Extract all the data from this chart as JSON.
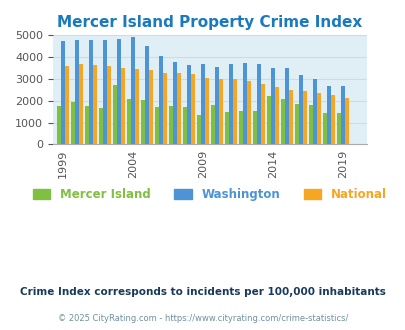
{
  "title": "Mercer Island Property Crime Index",
  "title_color": "#1a7abf",
  "subtitle": "Crime Index corresponds to incidents per 100,000 inhabitants",
  "copyright": "© 2025 CityRating.com - https://www.cityrating.com/crime-statistics/",
  "years": [
    1999,
    2000,
    2001,
    2002,
    2003,
    2004,
    2005,
    2006,
    2007,
    2008,
    2009,
    2010,
    2011,
    2012,
    2013,
    2014,
    2015,
    2016,
    2017,
    2018,
    2019,
    2020
  ],
  "mercer_island": [
    1780,
    1940,
    1760,
    1680,
    2740,
    2060,
    2030,
    1720,
    1760,
    1730,
    1340,
    1820,
    1480,
    1520,
    1550,
    2200,
    2100,
    1850,
    1820,
    1440,
    1440,
    0
  ],
  "washington": [
    4730,
    4800,
    4770,
    4780,
    4830,
    4920,
    4490,
    4040,
    3800,
    3660,
    3700,
    3560,
    3680,
    3720,
    3700,
    3480,
    3500,
    3170,
    3010,
    2660,
    2660,
    0
  ],
  "national": [
    3600,
    3670,
    3630,
    3580,
    3500,
    3470,
    3390,
    3280,
    3270,
    3250,
    3060,
    3000,
    2990,
    2900,
    2760,
    2610,
    2490,
    2450,
    2370,
    2260,
    2140,
    0
  ],
  "mercer_color": "#80c040",
  "washington_color": "#4d94d6",
  "national_color": "#f5a623",
  "bg_color": "#e0eff5",
  "ylim": [
    0,
    5000
  ],
  "yticks": [
    0,
    1000,
    2000,
    3000,
    4000,
    5000
  ],
  "xlabel_ticks": [
    1999,
    2004,
    2009,
    2014,
    2019
  ],
  "bar_width": 0.28,
  "grid_color": "#c8dde8",
  "legend_labels": [
    "Mercer Island",
    "Washington",
    "National"
  ],
  "legend_colors": [
    "#80c040",
    "#4d94d6",
    "#f5a623"
  ],
  "subtitle_color": "#1a3a5c",
  "copyright_color": "#7090a0"
}
